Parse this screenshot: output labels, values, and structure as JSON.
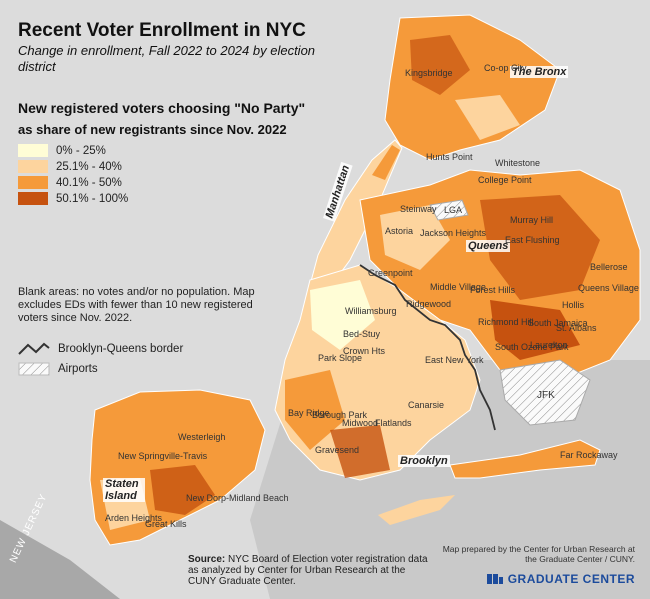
{
  "title": "Recent Voter Enrollment in NYC",
  "subtitle": "Change in enrollment, Fall 2022 to 2024 by election district",
  "legend": {
    "title": "New registered voters choosing \"No Party\"",
    "subtitle": "as share of new registrants since Nov. 2022",
    "items": [
      {
        "label": "0% - 25%",
        "color": "#fffdd6"
      },
      {
        "label": "25.1% - 40%",
        "color": "#fdd49e"
      },
      {
        "label": "40.1% - 50%",
        "color": "#f59a3a"
      },
      {
        "label": "50.1% - 100%",
        "color": "#c6520f"
      }
    ]
  },
  "note": "Blank areas: no votes and/or no population. Map excludes EDs with fewer than 10 new registered voters since Nov. 2022.",
  "border_legend": "Brooklyn-Queens border",
  "airport_legend": "Airports",
  "source": {
    "label": "Source:",
    "text": "NYC Board of Election voter registration data as analyzed by Center for Urban Research at the CUNY Graduate Center."
  },
  "credit": "Map prepared by the Center for Urban Research at the Graduate Center / CUNY.",
  "logo": "GRADUATE CENTER",
  "nj_label": "NEW JERSEY",
  "boroughs": {
    "bronx": "The Bronx",
    "manhattan": "Manhattan",
    "queens": "Queens",
    "brooklyn": "Brooklyn",
    "staten_island": "Staten Island"
  },
  "neighborhoods": {
    "kingsbridge": "Kingsbridge",
    "coop_city": "Co-op City",
    "hunts_point": "Hunts Point",
    "whitestone": "Whitestone",
    "college_point": "College Point",
    "lga": "LGA",
    "steinway": "Steinway",
    "astoria": "Astoria",
    "jackson_heights": "Jackson Heights",
    "murray_hill": "Murray Hill",
    "east_flushing": "East Flushing",
    "bellerose": "Bellerose",
    "queens_village": "Queens Village",
    "middle_village": "Middle Village",
    "forest_hills": "Forest Hills",
    "ridgewood": "Ridgewood",
    "williamsburg": "Williamsburg",
    "greenpoint": "Greenpoint",
    "richmond_hill": "Richmond Hill",
    "south_jamaica": "South Jamaica",
    "st_albans": "St. Albans",
    "hollis": "Hollis",
    "south_ozone_park": "South Ozone Park",
    "laurelton": "Laurelton",
    "jfk": "JFK",
    "bed_stuy": "Bed-Stuy",
    "crown_hts": "Crown Hts",
    "park_slope": "Park Slope",
    "east_new_york": "East New York",
    "bay_ridge": "Bay Ridge",
    "borough_park": "Borough Park",
    "midwood": "Midwood",
    "flatlands": "Flatlands",
    "canarsie": "Canarsie",
    "gravesend": "Gravesend",
    "far_rockaway": "Far Rockaway",
    "westerleigh": "Westerleigh",
    "new_springville": "New Springville-Travis",
    "new_dorp": "New Dorp-Midland Beach",
    "arden_heights": "Arden Heights",
    "great_kills": "Great Kills"
  }
}
